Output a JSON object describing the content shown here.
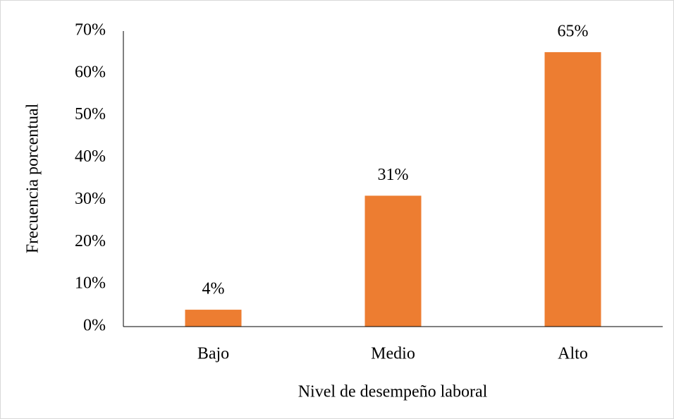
{
  "chart_data": {
    "type": "bar",
    "x_label": "Nivel de desempeño laboral",
    "y_label": "Frecuencia porcentual",
    "categories": [
      "Bajo",
      "Medio",
      "Alto"
    ],
    "values": [
      4,
      31,
      65
    ],
    "value_labels": [
      "4%",
      "31%",
      "65%"
    ],
    "color": "#ed7d31",
    "ylim": [
      0,
      70
    ],
    "yticks": [
      {
        "value": 0,
        "label": "0%"
      },
      {
        "value": 10,
        "label": "10%"
      },
      {
        "value": 20,
        "label": "20%"
      },
      {
        "value": 30,
        "label": "30%"
      },
      {
        "value": 40,
        "label": "40%"
      },
      {
        "value": 50,
        "label": "50%"
      },
      {
        "value": 60,
        "label": "60%"
      },
      {
        "value": 70,
        "label": "70%"
      }
    ],
    "grid": false
  }
}
